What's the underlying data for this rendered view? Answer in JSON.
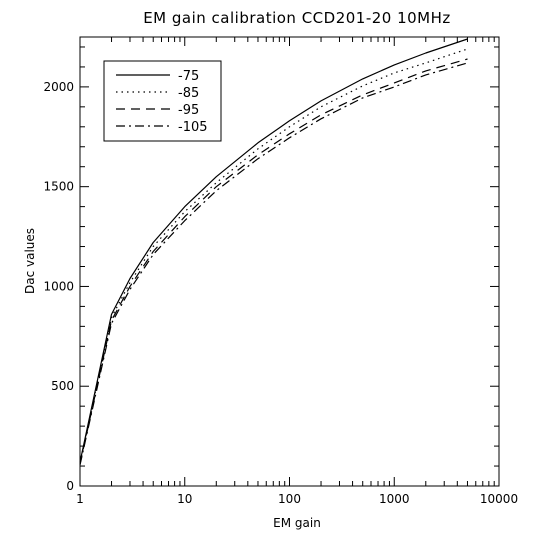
{
  "chart_data": {
    "type": "line",
    "title": "EM gain calibration CCD201-20 10MHz",
    "xlabel": "EM gain",
    "ylabel": "Dac values",
    "x_scale": "log",
    "xlim": [
      1,
      10000
    ],
    "ylim": [
      0,
      2250
    ],
    "x_ticks": [
      1,
      10,
      100,
      1000,
      10000
    ],
    "x_tick_labels": [
      "1",
      "10",
      "100",
      "1000",
      "10000"
    ],
    "y_ticks": [
      0,
      500,
      1000,
      1500,
      2000
    ],
    "y_tick_labels": [
      "0",
      "500",
      "1000",
      "1500",
      "2000"
    ],
    "grid": false,
    "legend_position": "top-left",
    "series": [
      {
        "name": "-75",
        "line_style": "solid",
        "x": [
          1,
          2,
          3,
          5,
          10,
          20,
          50,
          100,
          200,
          500,
          1000,
          2000,
          5000
        ],
        "y": [
          120,
          860,
          1040,
          1220,
          1400,
          1550,
          1720,
          1830,
          1930,
          2040,
          2110,
          2170,
          2240
        ]
      },
      {
        "name": "-85",
        "line_style": "dotted",
        "x": [
          1,
          2,
          3,
          5,
          10,
          20,
          50,
          100,
          200,
          500,
          1000,
          2000,
          5000
        ],
        "y": [
          115,
          845,
          1020,
          1200,
          1375,
          1520,
          1690,
          1800,
          1900,
          2005,
          2070,
          2120,
          2190
        ]
      },
      {
        "name": "-95",
        "line_style": "dashed",
        "x": [
          1,
          2,
          3,
          5,
          10,
          20,
          50,
          100,
          200,
          500,
          1000,
          2000,
          5000
        ],
        "y": [
          110,
          830,
          1000,
          1175,
          1350,
          1500,
          1660,
          1765,
          1860,
          1960,
          2020,
          2080,
          2140
        ]
      },
      {
        "name": "-105",
        "line_style": "dash-dot",
        "x": [
          1,
          2,
          3,
          5,
          10,
          20,
          50,
          100,
          200,
          500,
          1000,
          2000,
          5000
        ],
        "y": [
          105,
          815,
          985,
          1160,
          1330,
          1480,
          1640,
          1745,
          1840,
          1945,
          2000,
          2060,
          2120
        ]
      }
    ]
  }
}
